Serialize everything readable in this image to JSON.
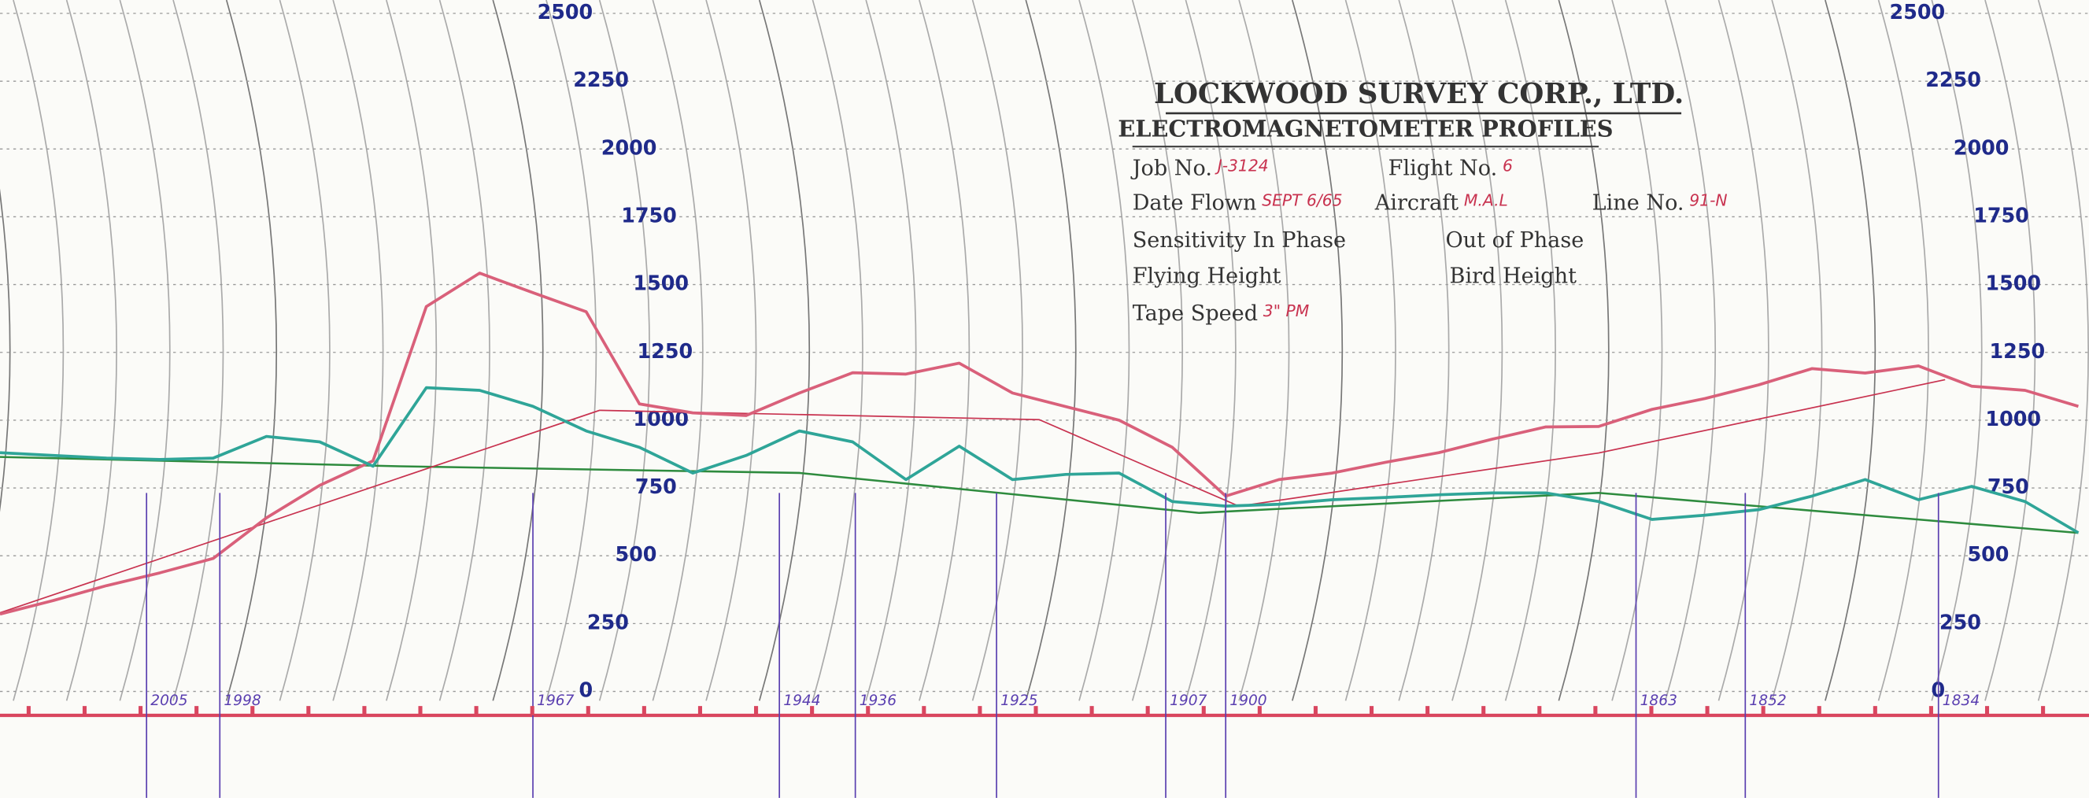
{
  "document": {
    "title": "LOCKWOOD SURVEY CORP., LTD.",
    "subtitle": "ELECTROMAGNETOMETER PROFILES",
    "rows": [
      [
        {
          "label": "Job No.",
          "value": "J-3124"
        },
        {
          "label": "Flight No.",
          "value": "6"
        }
      ],
      [
        {
          "label": "Date Flown",
          "value": "SEPT 6/65"
        },
        {
          "label": "Aircraft",
          "value": "M.A.L"
        },
        {
          "label": "Line No.",
          "value": "91-N"
        }
      ],
      [
        {
          "label": "Sensitivity In Phase"
        },
        {
          "label": "Out of Phase"
        }
      ],
      [
        {
          "label": "Flying Height"
        },
        {
          "label": "Bird Height"
        }
      ],
      [
        {
          "label": "Tape Speed",
          "value": "3\" PM"
        }
      ]
    ],
    "fiducials": [
      "2005",
      "1998",
      "1967",
      "1944",
      "1936",
      "1925",
      "1907",
      "1900",
      "1863",
      "1852",
      "1834"
    ]
  },
  "chart_data": {
    "type": "line",
    "ylim": [
      0,
      2500
    ],
    "yticks": [
      0,
      250,
      500,
      750,
      1000,
      1250,
      1500,
      1750,
      2000,
      2250,
      2500
    ],
    "grid": true,
    "series": [
      {
        "color": "#d9607a",
        "values": [
          285,
          335,
          390,
          437,
          490,
          640,
          760,
          850,
          1419,
          1542,
          1470,
          1400,
          1060,
          1027,
          1017,
          1100,
          1175,
          1170,
          1210,
          1100,
          1050,
          1000,
          900,
          720,
          781,
          805,
          845,
          880,
          930,
          975,
          977,
          1040,
          1080,
          1130,
          1190,
          1174,
          1200,
          1125,
          1110,
          1051
        ]
      },
      {
        "color": "#2fa598",
        "values": [
          880,
          870,
          860,
          855,
          860,
          940,
          920,
          830,
          1120,
          1110,
          1051,
          960,
          900,
          805,
          870,
          960,
          920,
          781,
          904,
          781,
          800,
          805,
          700,
          683,
          690,
          707,
          715,
          725,
          732,
          732,
          700,
          634,
          650,
          670,
          720,
          781,
          707,
          756,
          700,
          585
        ]
      }
    ]
  }
}
